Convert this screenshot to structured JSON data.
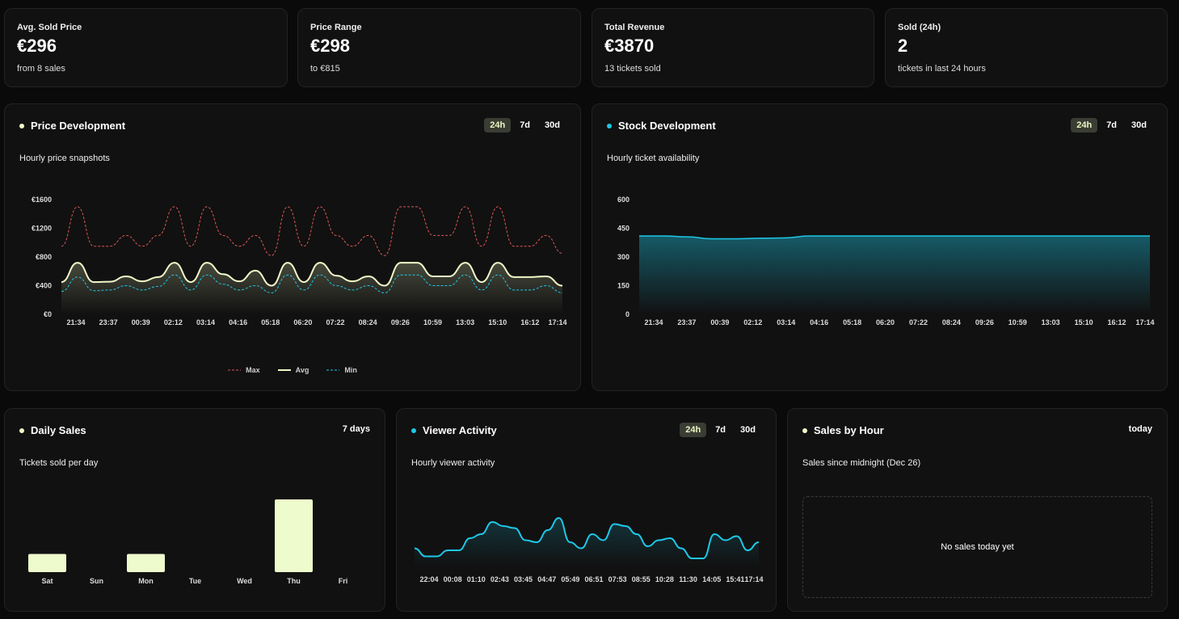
{
  "stats": [
    {
      "label": "Avg. Sold Price",
      "value": "€296",
      "sub": "from 8 sales"
    },
    {
      "label": "Price Range",
      "value": "€298",
      "sub": "to €815"
    },
    {
      "label": "Total Revenue",
      "value": "€3870",
      "sub": "13 tickets sold"
    },
    {
      "label": "Sold (24h)",
      "value": "2",
      "sub": "tickets in last 24 hours"
    }
  ],
  "colors": {
    "avg": "#f0f8c8",
    "max": "#e05555",
    "min": "#1ec8e8",
    "stock": "#1ec8e8",
    "bar": "#eefbcc"
  },
  "tabs": [
    "24h",
    "7d",
    "30d"
  ],
  "price": {
    "title": "Price Development",
    "subtitle": "Hourly price snapshots",
    "legend": [
      "Max",
      "Avg",
      "Min"
    ]
  },
  "stock": {
    "title": "Stock Development",
    "subtitle": "Hourly ticket availability"
  },
  "daily": {
    "title": "Daily Sales",
    "range": "7 days",
    "subtitle": "Tickets sold per day"
  },
  "viewer": {
    "title": "Viewer Activity",
    "subtitle": "Hourly viewer activity"
  },
  "hourly": {
    "title": "Sales by Hour",
    "range": "today",
    "subtitle": "Sales since midnight (Dec 26)",
    "empty": "No sales today yet"
  },
  "chart_data": [
    {
      "type": "line",
      "id": "price",
      "ylim": [
        0,
        1600
      ],
      "yticks": [
        "€0",
        "€400",
        "€800",
        "€1200",
        "€1600"
      ],
      "ytick_values": [
        0,
        400,
        800,
        1200,
        1600
      ],
      "xticks": [
        "21:34",
        "23:37",
        "00:39",
        "02:12",
        "03:14",
        "04:16",
        "05:18",
        "06:20",
        "07:22",
        "08:24",
        "09:26",
        "10:59",
        "13:03",
        "15:10",
        "16:12",
        "17:14"
      ],
      "series": [
        {
          "name": "Max",
          "values": [
            950,
            1500,
            950,
            950,
            1100,
            950,
            1100,
            1500,
            950,
            1500,
            1100,
            950,
            1100,
            820,
            1500,
            950,
            1500,
            1100,
            950,
            1100,
            820,
            1500,
            1500,
            1100,
            1100,
            1500,
            950,
            1500,
            950,
            950,
            1100,
            850
          ]
        },
        {
          "name": "Avg",
          "values": [
            450,
            720,
            450,
            455,
            530,
            460,
            520,
            720,
            450,
            720,
            560,
            460,
            610,
            400,
            720,
            450,
            720,
            540,
            460,
            530,
            400,
            720,
            720,
            530,
            530,
            720,
            450,
            720,
            520,
            520,
            530,
            400
          ]
        },
        {
          "name": "Min",
          "values": [
            320,
            520,
            330,
            340,
            400,
            340,
            390,
            550,
            340,
            550,
            420,
            340,
            400,
            300,
            550,
            340,
            550,
            400,
            340,
            400,
            300,
            550,
            550,
            400,
            400,
            550,
            340,
            550,
            340,
            340,
            400,
            300
          ]
        }
      ]
    },
    {
      "type": "area",
      "id": "stock",
      "ylim": [
        0,
        600
      ],
      "yticks": [
        "0",
        "150",
        "300",
        "450",
        "600"
      ],
      "ytick_values": [
        0,
        150,
        300,
        450,
        600
      ],
      "xticks": [
        "21:34",
        "23:37",
        "00:39",
        "02:12",
        "03:14",
        "04:16",
        "05:18",
        "06:20",
        "07:22",
        "08:24",
        "09:26",
        "10:59",
        "13:03",
        "15:10",
        "16:12",
        "17:14"
      ],
      "series": [
        {
          "name": "Stock",
          "values": [
            410,
            410,
            405,
            395,
            395,
            398,
            400,
            410,
            410,
            410,
            410,
            410,
            410,
            410,
            410,
            410,
            410,
            410,
            410,
            410,
            410,
            410
          ]
        }
      ]
    },
    {
      "type": "bar",
      "id": "daily",
      "categories": [
        "Sat",
        "Sun",
        "Mon",
        "Tue",
        "Wed",
        "Thu",
        "Fri"
      ],
      "values": [
        1,
        0,
        1,
        0,
        0,
        4,
        0
      ],
      "ylim": [
        0,
        4
      ]
    },
    {
      "type": "area",
      "id": "viewer",
      "ylim": [
        0,
        30
      ],
      "xticks": [
        "22:04",
        "00:08",
        "01:10",
        "02:43",
        "03:45",
        "04:47",
        "05:49",
        "06:51",
        "07:53",
        "08:55",
        "10:28",
        "11:30",
        "14:05",
        "15:41",
        "17:14"
      ],
      "series": [
        {
          "name": "Viewers",
          "values": [
            9,
            5,
            5,
            8,
            8,
            14,
            16,
            22,
            20,
            19,
            13,
            12,
            18,
            24,
            12,
            9,
            16,
            13,
            21,
            20,
            16,
            10,
            13,
            14,
            9,
            4,
            4,
            16,
            13,
            15,
            8,
            12
          ]
        }
      ]
    }
  ]
}
